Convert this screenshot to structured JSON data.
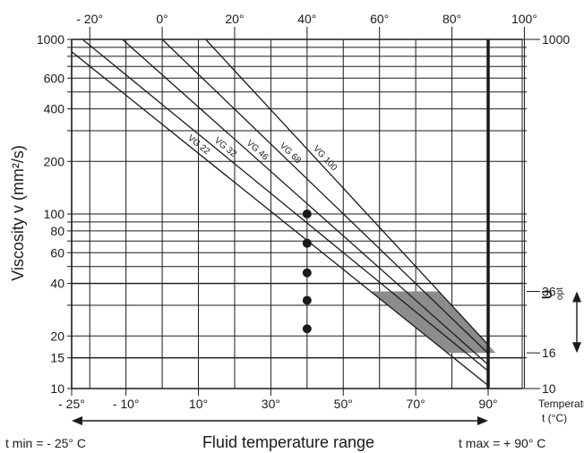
{
  "chart_data": {
    "type": "line",
    "title": "",
    "ylabel": "Viscosity v (mm²/s)",
    "xlabel": "Fluid temperature range",
    "y_scale": "log",
    "ylim": [
      10,
      1000
    ],
    "xlim": [
      -25,
      100
    ],
    "y_ticks_left": [
      "1000",
      "600",
      "400",
      "200",
      "100",
      "80",
      "60",
      "40",
      "20",
      "15",
      "10"
    ],
    "y_tick_values_left": [
      1000,
      600,
      400,
      200,
      100,
      80,
      60,
      40,
      20,
      15,
      10
    ],
    "y_ticks_right": [
      "1000",
      "36",
      "16",
      "10"
    ],
    "y_tick_values_right": [
      1000,
      36,
      16,
      10
    ],
    "x_ticks_top": [
      "- 20°",
      "0°",
      "20°",
      "40°",
      "60°",
      "80°",
      "100°"
    ],
    "x_tick_values_top": [
      -20,
      0,
      20,
      40,
      60,
      80,
      100
    ],
    "x_ticks_bottom": [
      "- 25°",
      "- 10°",
      "10°",
      "30°",
      "50°",
      "70°",
      "90°"
    ],
    "x_tick_values_bottom": [
      -25,
      -10,
      10,
      30,
      50,
      70,
      90
    ],
    "temperature_label": "Temperature",
    "temperature_unit": "t (°C)",
    "t_min_label": "t min = - 25° C",
    "t_max_label": "t max = + 90° C",
    "v_opt_symbol": "υ",
    "v_opt_sub": "opt",
    "series": [
      {
        "name": "VG 22",
        "points": [
          [
            -25,
            850
          ],
          [
            90,
            10.4
          ]
        ]
      },
      {
        "name": "VG 32",
        "points": [
          [
            -22,
            1000
          ],
          [
            90,
            12.6
          ]
        ]
      },
      {
        "name": "VG 46",
        "points": [
          [
            -11,
            1000
          ],
          [
            90,
            13.7
          ]
        ]
      },
      {
        "name": "VG 68",
        "points": [
          [
            0,
            1000
          ],
          [
            90,
            15.9
          ]
        ]
      },
      {
        "name": "VG 100",
        "points": [
          [
            12,
            1000
          ],
          [
            90,
            17.8
          ]
        ]
      }
    ],
    "points_at_40": [
      {
        "series": "VG 22",
        "x": 40,
        "y": 22
      },
      {
        "series": "VG 32",
        "x": 40,
        "y": 32
      },
      {
        "series": "VG 46",
        "x": 40,
        "y": 46
      },
      {
        "series": "VG 68",
        "x": 40,
        "y": 68
      },
      {
        "series": "VG 100",
        "x": 40,
        "y": 100
      }
    ],
    "optimum_band": {
      "y_min": 16,
      "y_max": 36,
      "color": "#8c8c8c"
    },
    "t_max_line": 90,
    "colors": {
      "lines": "#1a1a1a",
      "band": "#8c8c8c",
      "background": "#ffffff"
    }
  }
}
